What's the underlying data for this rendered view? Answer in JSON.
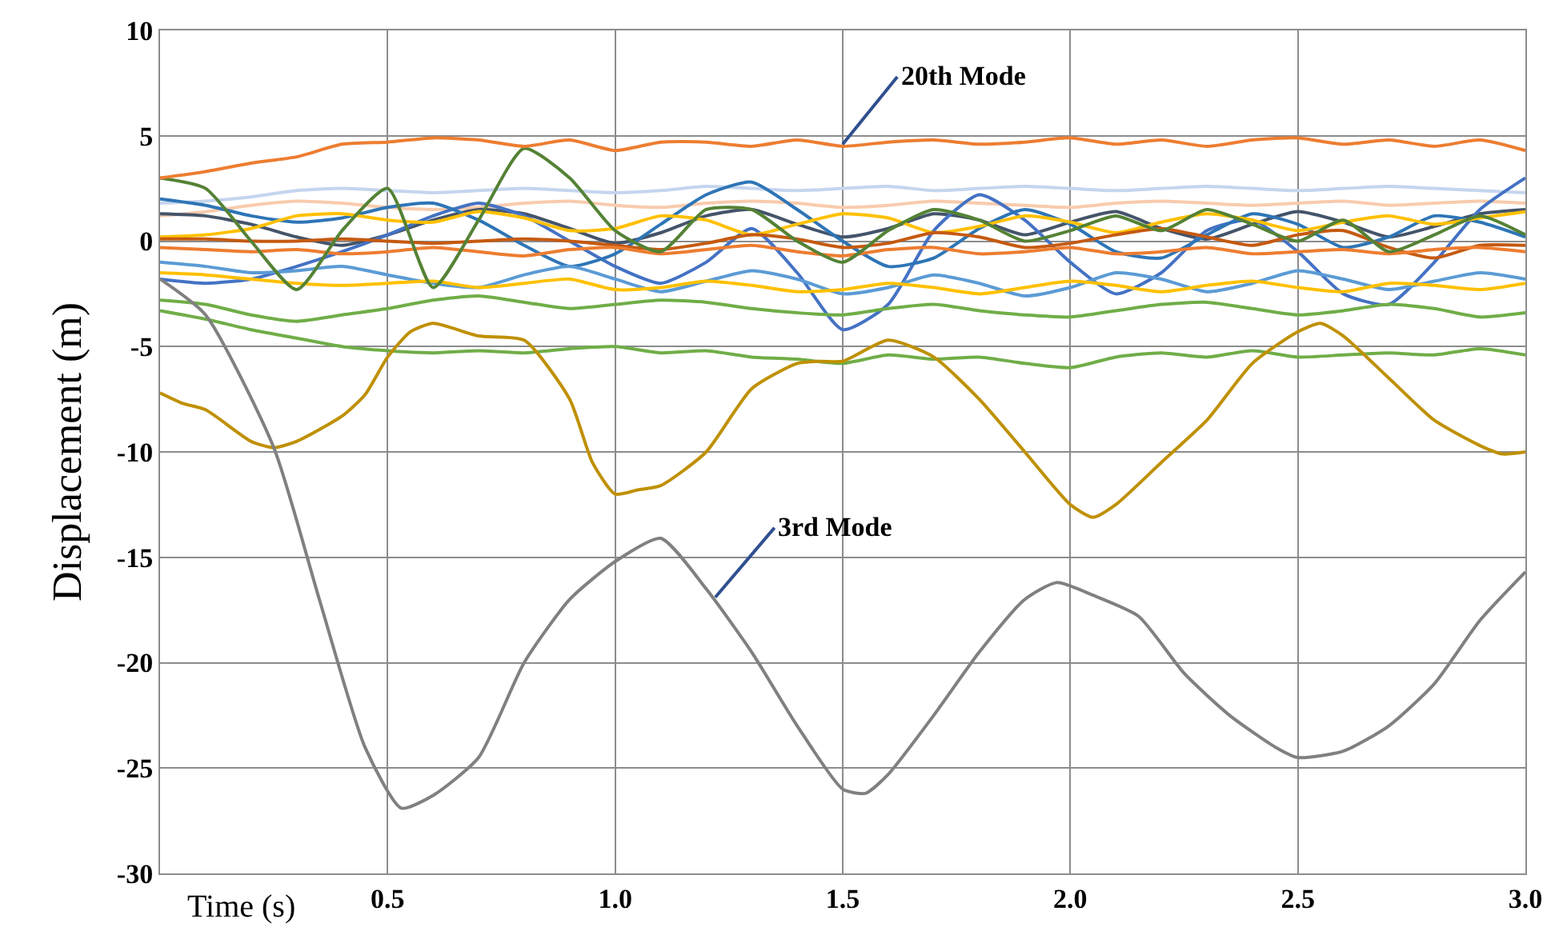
{
  "chart_data": {
    "type": "line",
    "xlabel": "Time (s)",
    "ylabel": "Displacement (m)",
    "xlim": [
      0,
      3.0
    ],
    "ylim": [
      -30,
      10
    ],
    "xticks": [
      0.5,
      {
        "value": 1,
        "label": "1.0"
      },
      1.5,
      {
        "value": 2,
        "label": "2.0"
      },
      2.5,
      {
        "value": 3,
        "label": "3.0"
      }
    ],
    "yticks": [
      -30,
      -25,
      -20,
      -15,
      -10,
      -5,
      0,
      5,
      10
    ],
    "grid": true,
    "marker": "none",
    "line_style": "solid",
    "x": [
      0,
      0.1,
      0.2,
      0.3,
      0.4,
      0.5,
      0.6,
      0.7,
      0.8,
      0.9,
      1.0,
      1.1,
      1.2,
      1.3,
      1.4,
      1.5,
      1.6,
      1.7,
      1.8,
      1.9,
      2.0,
      2.1,
      2.2,
      2.3,
      2.4,
      2.5,
      2.6,
      2.7,
      2.8,
      2.9,
      3.0
    ],
    "annotations": [
      {
        "text": "20th Mode",
        "x": 1.5,
        "y": 4.6
      },
      {
        "text": "3rd Mode",
        "x": 1.22,
        "y": -16.9
      }
    ],
    "series": [
      {
        "color": "#c5d5ee",
        "values": [
          1.8,
          1.9,
          2.1,
          2.4,
          2.5,
          2.4,
          2.3,
          2.4,
          2.5,
          2.4,
          2.3,
          2.4,
          2.6,
          2.5,
          2.4,
          2.5,
          2.6,
          2.4,
          2.5,
          2.6,
          2.5,
          2.4,
          2.5,
          2.6,
          2.5,
          2.4,
          2.5,
          2.6,
          2.5,
          2.4,
          2.3
        ]
      },
      {
        "color": "#f8cbad",
        "values": [
          1.2,
          1.4,
          1.7,
          1.9,
          1.8,
          1.6,
          1.5,
          1.6,
          1.8,
          1.9,
          1.7,
          1.6,
          1.8,
          1.9,
          1.8,
          1.6,
          1.7,
          1.9,
          1.8,
          1.7,
          1.6,
          1.8,
          1.9,
          1.8,
          1.7,
          1.8,
          1.9,
          1.7,
          1.8,
          1.9,
          1.8
        ]
      },
      {
        "color": "#44546a",
        "values": [
          1.3,
          1.2,
          0.8,
          0.2,
          -0.2,
          0.3,
          1.0,
          1.5,
          1.3,
          0.6,
          -0.1,
          0.4,
          1.2,
          1.5,
          0.8,
          0.2,
          0.6,
          1.3,
          1.0,
          0.3,
          0.9,
          1.4,
          0.6,
          0.1,
          0.8,
          1.4,
          0.9,
          0.2,
          0.7,
          1.3,
          1.5
        ]
      },
      {
        "color": "#4472c4",
        "values": [
          -1.8,
          -2.0,
          -1.8,
          -1.2,
          -0.5,
          0.3,
          1.2,
          1.8,
          1.2,
          0.0,
          -1.2,
          -2.0,
          -1.0,
          0.6,
          -1.5,
          -4.2,
          -3.0,
          0.5,
          2.2,
          1.0,
          -1.0,
          -2.5,
          -1.5,
          0.5,
          1.0,
          -0.5,
          -2.5,
          -3.0,
          -1.0,
          1.5,
          3.0
        ]
      },
      {
        "color": "#2e75b6",
        "values": [
          2.0,
          1.7,
          1.2,
          0.9,
          1.1,
          1.6,
          1.8,
          1.0,
          -0.2,
          -1.2,
          -0.6,
          0.8,
          2.2,
          2.8,
          1.5,
          0.0,
          -1.2,
          -0.8,
          0.6,
          1.5,
          0.8,
          -0.5,
          -0.8,
          0.3,
          1.3,
          0.8,
          -0.3,
          0.2,
          1.2,
          0.9,
          0.2
        ]
      },
      {
        "color": "#ffc000",
        "values": [
          0.2,
          0.3,
          0.6,
          1.2,
          1.3,
          1.0,
          0.9,
          1.4,
          1.1,
          0.5,
          0.6,
          1.2,
          1.0,
          0.3,
          0.8,
          1.3,
          1.1,
          0.4,
          0.7,
          1.2,
          0.9,
          0.4,
          0.9,
          1.3,
          1.0,
          0.5,
          0.9,
          1.2,
          0.8,
          1.1,
          1.4
        ]
      },
      {
        "color": "#c55a11",
        "values": [
          0.1,
          0.1,
          0.0,
          0.0,
          0.1,
          0.0,
          -0.1,
          0.0,
          0.1,
          0.0,
          -0.2,
          -0.4,
          -0.1,
          0.3,
          0.1,
          -0.3,
          -0.1,
          0.4,
          0.2,
          -0.3,
          -0.1,
          0.3,
          0.6,
          0.2,
          -0.2,
          0.3,
          0.5,
          -0.3,
          -0.8,
          -0.2,
          -0.2
        ]
      },
      {
        "color": "#ed7d31",
        "values": [
          -0.3,
          -0.4,
          -0.5,
          -0.4,
          -0.6,
          -0.5,
          -0.3,
          -0.5,
          -0.7,
          -0.4,
          -0.3,
          -0.6,
          -0.4,
          -0.2,
          -0.5,
          -0.7,
          -0.4,
          -0.3,
          -0.6,
          -0.5,
          -0.3,
          -0.6,
          -0.5,
          -0.3,
          -0.6,
          -0.5,
          -0.4,
          -0.6,
          -0.4,
          -0.3,
          -0.5
        ]
      },
      {
        "color": "#5b9bd5",
        "values": [
          -1.0,
          -1.2,
          -1.5,
          -1.4,
          -1.2,
          -1.6,
          -2.0,
          -2.2,
          -1.6,
          -1.2,
          -1.8,
          -2.4,
          -1.9,
          -1.4,
          -1.8,
          -2.5,
          -2.2,
          -1.6,
          -2.0,
          -2.6,
          -2.2,
          -1.5,
          -1.8,
          -2.4,
          -2.0,
          -1.4,
          -1.8,
          -2.3,
          -1.9,
          -1.5,
          -1.8
        ]
      },
      {
        "color": "#ffc000",
        "values": [
          -1.5,
          -1.6,
          -1.8,
          -2.0,
          -2.1,
          -2.0,
          -1.9,
          -2.2,
          -2.0,
          -1.8,
          -2.3,
          -2.2,
          -1.9,
          -2.1,
          -2.4,
          -2.3,
          -2.0,
          -2.2,
          -2.5,
          -2.2,
          -1.9,
          -2.1,
          -2.4,
          -2.1,
          -1.9,
          -2.2,
          -2.4,
          -2.0,
          -2.1,
          -2.3,
          -2.0
        ]
      },
      {
        "color": "#70ad47",
        "values": [
          -2.8,
          -3.0,
          -3.5,
          -3.8,
          -3.5,
          -3.2,
          -2.8,
          -2.6,
          -2.9,
          -3.2,
          -3.0,
          -2.8,
          -2.9,
          -3.2,
          -3.4,
          -3.5,
          -3.2,
          -3.0,
          -3.3,
          -3.5,
          -3.6,
          -3.3,
          -3.0,
          -2.9,
          -3.2,
          -3.5,
          -3.3,
          -3.0,
          -3.2,
          -3.6,
          -3.4
        ]
      },
      {
        "color": "#548235",
        "values": [
          3.0,
          2.5,
          0.0,
          -2.3,
          0.5,
          2.5,
          -2.2,
          1.0,
          4.4,
          3.0,
          0.5,
          -0.5,
          1.5,
          1.5,
          0.0,
          -1.0,
          0.5,
          1.5,
          1.0,
          0.0,
          0.5,
          1.2,
          0.5,
          1.5,
          0.8,
          0.0,
          1.0,
          -0.5,
          0.3,
          1.2,
          0.3
        ]
      },
      {
        "color": "#70ad47",
        "values": [
          -3.3,
          -3.7,
          -4.2,
          -4.6,
          -5.0,
          -5.2,
          -5.3,
          -5.2,
          -5.3,
          -5.1,
          -5.0,
          -5.3,
          -5.2,
          -5.5,
          -5.6,
          -5.8,
          -5.4,
          -5.6,
          -5.5,
          -5.8,
          -6.0,
          -5.5,
          -5.3,
          -5.5,
          -5.2,
          -5.5,
          -5.4,
          -5.3,
          -5.4,
          -5.1,
          -5.4
        ]
      },
      {
        "color": "#ed7d31",
        "values": [
          3.0,
          3.3,
          3.7,
          4.0,
          4.6,
          4.7,
          4.9,
          4.8,
          4.5,
          4.8,
          4.3,
          4.7,
          4.7,
          4.5,
          4.8,
          4.5,
          4.7,
          4.8,
          4.6,
          4.7,
          4.9,
          4.6,
          4.8,
          4.5,
          4.8,
          4.9,
          4.6,
          4.8,
          4.5,
          4.8,
          4.3
        ]
      },
      {
        "color": "#bf9000",
        "x": [
          0,
          0.05,
          0.1,
          0.2,
          0.25,
          0.3,
          0.4,
          0.45,
          0.5,
          0.55,
          0.6,
          0.7,
          0.8,
          0.9,
          0.95,
          1.0,
          1.05,
          1.1,
          1.2,
          1.3,
          1.4,
          1.45,
          1.5,
          1.6,
          1.7,
          1.8,
          1.9,
          2.0,
          2.05,
          2.1,
          2.2,
          2.3,
          2.4,
          2.5,
          2.55,
          2.6,
          2.7,
          2.8,
          2.9,
          2.95,
          3.0
        ],
        "values": [
          -7.2,
          -7.7,
          -8.0,
          -9.5,
          -9.8,
          -9.5,
          -8.3,
          -7.3,
          -5.5,
          -4.3,
          -3.9,
          -4.5,
          -4.7,
          -7.5,
          -10.5,
          -12.0,
          -11.8,
          -11.6,
          -10.0,
          -7.0,
          -5.8,
          -5.7,
          -5.7,
          -4.7,
          -5.5,
          -7.5,
          -10.0,
          -12.5,
          -13.1,
          -12.5,
          -10.5,
          -8.5,
          -5.8,
          -4.3,
          -3.9,
          -4.5,
          -6.5,
          -8.5,
          -9.7,
          -10.1,
          -10.0
        ]
      },
      {
        "color": "#808080",
        "x": [
          0,
          0.1,
          0.25,
          0.35,
          0.45,
          0.53,
          0.6,
          0.7,
          0.8,
          0.9,
          1.0,
          1.1,
          1.2,
          1.3,
          1.4,
          1.5,
          1.55,
          1.6,
          1.7,
          1.8,
          1.9,
          1.97,
          2.05,
          2.15,
          2.25,
          2.35,
          2.45,
          2.5,
          2.6,
          2.7,
          2.8,
          2.9,
          3.0
        ],
        "values": [
          -1.8,
          -3.5,
          -9.8,
          -17.0,
          -24.0,
          -26.9,
          -26.3,
          -24.5,
          -20.0,
          -17.0,
          -15.2,
          -14.1,
          -16.5,
          -19.5,
          -23.0,
          -26.0,
          -26.2,
          -25.3,
          -22.5,
          -19.5,
          -17.0,
          -16.2,
          -16.8,
          -17.8,
          -20.5,
          -22.5,
          -24.0,
          -24.5,
          -24.2,
          -23.0,
          -21.0,
          -18.0,
          -15.7
        ]
      }
    ]
  }
}
